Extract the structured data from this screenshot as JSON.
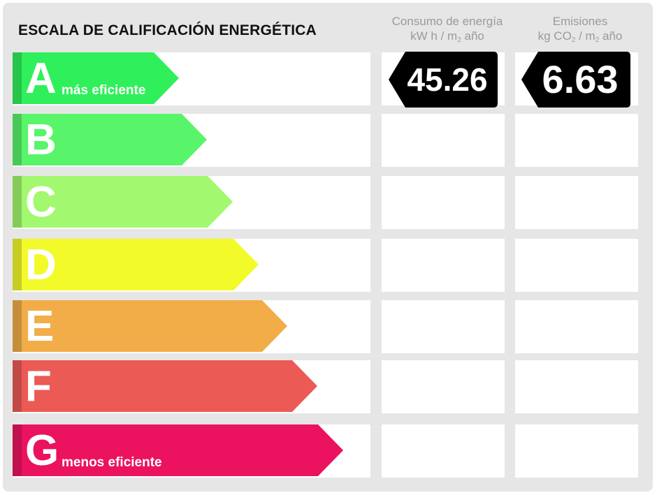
{
  "title": "ESCALA DE CALIFICACIÓN ENERGÉTICA",
  "columns": {
    "consumo": {
      "line1": "Consumo de energía",
      "line2_pre": "kW h / m",
      "line2_sub": "2",
      "line2_post": " año"
    },
    "emisiones": {
      "line1": "Emisiones",
      "line2_pre": "kg CO",
      "line2_sub": "2",
      "line2_mid": " / m",
      "line2_sub2": "2",
      "line2_post": " año"
    }
  },
  "ratings": [
    {
      "letter": "A",
      "label": "más eficiente",
      "color": "#2ff05a"
    },
    {
      "letter": "B",
      "label": "",
      "color": "#58f56a"
    },
    {
      "letter": "C",
      "label": "",
      "color": "#a2f86e"
    },
    {
      "letter": "D",
      "label": "",
      "color": "#f3fa2a"
    },
    {
      "letter": "E",
      "label": "",
      "color": "#f2ad48"
    },
    {
      "letter": "F",
      "label": "",
      "color": "#ec5a55"
    },
    {
      "letter": "G",
      "label": "menos eficiente",
      "color": "#eb1260"
    }
  ],
  "values": {
    "consumo": "45.26",
    "emisiones": "6.63"
  }
}
